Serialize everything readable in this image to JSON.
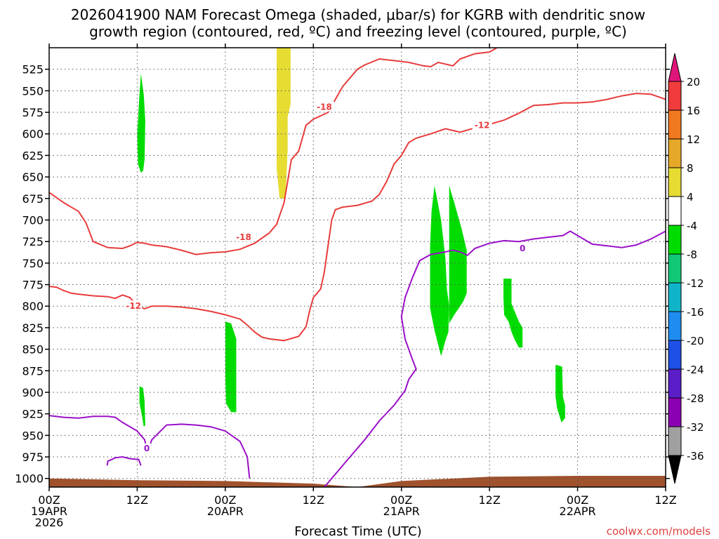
{
  "chart_data": {
    "type": "contour",
    "title_line1": "2026041900 NAM Forecast Omega (shaded, μbar/s) for KGRB with dendritic snow",
    "title_line2": "growth region (contoured, red, ºC) and freezing level (contoured, purple, ºC)",
    "xlabel": "Forecast Time (UTC)",
    "credit": "coolwx.com/models",
    "x_range_hours": [
      0,
      84
    ],
    "x_ticks": [
      {
        "h": 0,
        "l1": "00Z",
        "l2": "19APR",
        "l3": "2026"
      },
      {
        "h": 12,
        "l1": "12Z",
        "l2": "",
        "l3": ""
      },
      {
        "h": 24,
        "l1": "00Z",
        "l2": "20APR",
        "l3": ""
      },
      {
        "h": 36,
        "l1": "12Z",
        "l2": "",
        "l3": ""
      },
      {
        "h": 48,
        "l1": "00Z",
        "l2": "21APR",
        "l3": ""
      },
      {
        "h": 60,
        "l1": "12Z",
        "l2": "",
        "l3": ""
      },
      {
        "h": 72,
        "l1": "00Z",
        "l2": "22APR",
        "l3": ""
      },
      {
        "h": 84,
        "l1": "12Z",
        "l2": "",
        "l3": ""
      }
    ],
    "y_range_mb": [
      1010,
      500
    ],
    "y_ticks": [
      "525",
      "550",
      "575",
      "600",
      "625",
      "650",
      "675",
      "700",
      "725",
      "750",
      "775",
      "800",
      "825",
      "850",
      "875",
      "900",
      "925",
      "950",
      "975",
      "1000"
    ],
    "colorbar": {
      "labels": [
        "20",
        "16",
        "12",
        "8",
        "4",
        "-4",
        "-8",
        "-12",
        "-16",
        "-20",
        "-24",
        "-28",
        "-32",
        "-36"
      ],
      "colors": [
        "#f03c3c",
        "#f07820",
        "#e6a828",
        "#e6dc32",
        "#ffffff",
        "#00dc00",
        "#10c878",
        "#10b4c8",
        "#1e8cf0",
        "#1e50e6",
        "#5a1ec8",
        "#8c00b4",
        "#a0a0a0"
      ],
      "top_color": "#e0157a",
      "bottom_color": "#000000"
    },
    "omega_regions": [
      {
        "level": "4",
        "color": "#e6dc32",
        "points": [
          [
            31,
            500
          ],
          [
            32.9,
            500
          ],
          [
            32.9,
            565
          ],
          [
            32.5,
            580
          ],
          [
            32.5,
            618
          ],
          [
            32.2,
            675
          ],
          [
            31.4,
            675
          ],
          [
            31,
            640
          ]
        ]
      },
      {
        "level": "-4",
        "color": "#00dc00",
        "points": [
          [
            12.5,
            530
          ],
          [
            12.9,
            555
          ],
          [
            13.1,
            585
          ],
          [
            13,
            630
          ],
          [
            12.8,
            643
          ],
          [
            12.5,
            645
          ],
          [
            12.1,
            635
          ],
          [
            12,
            600
          ],
          [
            12.3,
            555
          ]
        ]
      },
      {
        "level": "-4",
        "color": "#00dc00",
        "points": [
          [
            12.3,
            893
          ],
          [
            12.8,
            895
          ],
          [
            13,
            910
          ],
          [
            13.1,
            938
          ],
          [
            12.9,
            940
          ],
          [
            12.6,
            925
          ],
          [
            12.3,
            912
          ]
        ]
      },
      {
        "level": "-4",
        "color": "#00dc00",
        "points": [
          [
            24,
            818
          ],
          [
            24.8,
            820
          ],
          [
            25.5,
            838
          ],
          [
            25.5,
            923
          ],
          [
            24.8,
            923
          ],
          [
            24.1,
            913
          ],
          [
            24,
            880
          ]
        ]
      },
      {
        "level": "-4",
        "color": "#00dc00",
        "points": [
          [
            52.5,
            660
          ],
          [
            53.4,
            700
          ],
          [
            54,
            745
          ],
          [
            54.2,
            780
          ],
          [
            54.5,
            800
          ],
          [
            54.4,
            830
          ],
          [
            54,
            840
          ],
          [
            53.4,
            858
          ],
          [
            52.5,
            828
          ],
          [
            51.9,
            802
          ],
          [
            51.9,
            730
          ],
          [
            52.1,
            690
          ]
        ]
      },
      {
        "level": "-4",
        "color": "#00dc00",
        "points": [
          [
            54.5,
            660
          ],
          [
            55.2,
            680
          ],
          [
            56.2,
            710
          ],
          [
            56.9,
            735
          ],
          [
            56.9,
            785
          ],
          [
            56.4,
            795
          ],
          [
            55.2,
            810
          ],
          [
            54.5,
            820
          ]
        ]
      },
      {
        "level": "-4",
        "color": "#00dc00",
        "points": [
          [
            61.9,
            768
          ],
          [
            63,
            768
          ],
          [
            63,
            797
          ],
          [
            64,
            818
          ],
          [
            64.5,
            825
          ],
          [
            64.5,
            848
          ],
          [
            64,
            848
          ],
          [
            63.5,
            840
          ],
          [
            63,
            830
          ],
          [
            62.6,
            818
          ],
          [
            62,
            810
          ],
          [
            61.9,
            790
          ]
        ]
      },
      {
        "level": "-4",
        "color": "#00dc00",
        "points": [
          [
            69,
            868
          ],
          [
            69.9,
            870
          ],
          [
            70,
            905
          ],
          [
            70.3,
            915
          ],
          [
            70.3,
            930
          ],
          [
            69.8,
            935
          ],
          [
            69.2,
            918
          ],
          [
            69,
            905
          ]
        ]
      }
    ],
    "terrain": {
      "color": "#a0522d",
      "points": [
        [
          0,
          1000
        ],
        [
          12,
          1002
        ],
        [
          24,
          1003
        ],
        [
          36,
          1006
        ],
        [
          42,
          1010
        ],
        [
          48,
          1003
        ],
        [
          60,
          998
        ],
        [
          72,
          997
        ],
        [
          84,
          997
        ]
      ]
    },
    "contours": [
      {
        "value": "-18",
        "label": "-18",
        "color": "#e83c3c",
        "label_at": [
          26.5,
          720
        ],
        "points": [
          [
            0,
            668
          ],
          [
            2,
            680
          ],
          [
            4,
            690
          ],
          [
            5,
            703
          ],
          [
            6,
            725
          ],
          [
            8,
            732
          ],
          [
            10,
            733
          ],
          [
            11,
            730
          ],
          [
            12,
            726
          ],
          [
            13,
            727
          ],
          [
            14,
            729
          ],
          [
            16,
            731
          ],
          [
            18,
            735
          ],
          [
            20,
            740
          ],
          [
            22,
            738
          ],
          [
            24,
            737
          ],
          [
            26,
            734
          ],
          [
            28,
            727
          ],
          [
            30,
            715
          ],
          [
            31,
            705
          ],
          [
            32,
            680
          ],
          [
            33,
            630
          ],
          [
            34,
            620
          ],
          [
            35,
            590
          ],
          [
            36,
            583
          ],
          [
            38,
            575
          ],
          [
            39,
            560
          ],
          [
            40,
            545
          ],
          [
            41,
            535
          ],
          [
            42,
            525
          ],
          [
            43,
            520
          ],
          [
            45,
            513
          ],
          [
            47,
            515
          ],
          [
            49,
            517
          ],
          [
            51,
            521
          ],
          [
            52,
            522
          ],
          [
            53,
            517
          ],
          [
            54,
            519
          ],
          [
            55,
            521
          ],
          [
            56,
            513
          ],
          [
            58,
            507
          ],
          [
            60,
            505
          ],
          [
            61,
            500
          ],
          [
            62,
            497
          ]
        ]
      },
      {
        "value": "-12",
        "label": "-12",
        "color": "#e83c3c",
        "label_at": [
          11.5,
          800
        ],
        "points": [
          [
            0,
            777
          ],
          [
            1,
            778
          ],
          [
            2,
            782
          ],
          [
            3,
            785
          ],
          [
            4,
            786
          ],
          [
            6,
            788
          ],
          [
            8,
            789
          ],
          [
            9,
            791
          ],
          [
            10,
            787
          ],
          [
            11,
            790
          ],
          [
            12,
            799
          ],
          [
            13,
            803
          ],
          [
            14,
            800
          ],
          [
            16,
            800
          ],
          [
            18,
            801
          ],
          [
            20,
            803
          ],
          [
            22,
            806
          ],
          [
            24,
            810
          ],
          [
            26,
            815
          ],
          [
            27,
            822
          ],
          [
            28,
            830
          ],
          [
            29,
            836
          ],
          [
            30,
            838
          ],
          [
            32,
            840
          ],
          [
            34,
            835
          ],
          [
            35,
            824
          ],
          [
            35.5,
            805
          ],
          [
            36,
            790
          ],
          [
            37,
            780
          ],
          [
            37.5,
            760
          ],
          [
            38,
            730
          ],
          [
            38.5,
            700
          ],
          [
            39,
            688
          ],
          [
            40,
            685
          ],
          [
            42,
            683
          ],
          [
            44,
            678
          ],
          [
            45,
            670
          ],
          [
            46,
            655
          ],
          [
            47,
            635
          ],
          [
            48,
            625
          ],
          [
            49,
            610
          ],
          [
            50,
            605
          ],
          [
            52,
            600
          ],
          [
            54,
            594
          ],
          [
            56,
            598
          ],
          [
            58,
            593
          ],
          [
            60,
            589
          ],
          [
            62,
            584
          ],
          [
            63,
            580
          ],
          [
            64,
            576
          ],
          [
            66,
            567
          ],
          [
            68,
            566
          ],
          [
            70,
            564
          ],
          [
            72,
            564
          ],
          [
            74,
            563
          ],
          [
            76,
            560
          ],
          [
            78,
            556
          ],
          [
            80,
            553
          ],
          [
            82,
            554
          ],
          [
            84,
            560
          ]
        ]
      },
      {
        "value": "0",
        "label": "0",
        "color": "#9a10c8",
        "label_at": [
          64.5,
          733
        ],
        "points": [
          [
            0,
            927
          ],
          [
            2,
            929
          ],
          [
            4,
            930
          ],
          [
            6,
            928
          ],
          [
            8,
            928
          ],
          [
            9,
            929
          ],
          [
            10,
            935
          ],
          [
            12,
            945
          ],
          [
            13,
            955
          ],
          [
            13.4,
            968
          ]
        ],
        "extra": [
          [
            13.4,
            968
          ],
          [
            14,
            955
          ],
          [
            16,
            938
          ],
          [
            18,
            937
          ],
          [
            20,
            938
          ],
          [
            22,
            940
          ],
          [
            24,
            945
          ],
          [
            26,
            957
          ],
          [
            27,
            975
          ],
          [
            27.3,
            1000
          ]
        ]
      },
      {
        "value": "0b",
        "label": "",
        "color": "#9a10c8",
        "label_at": null,
        "points": [
          [
            7.9,
            985
          ],
          [
            8,
            980
          ],
          [
            9,
            976
          ],
          [
            10,
            975
          ],
          [
            11,
            977
          ],
          [
            12.2,
            978
          ],
          [
            12.5,
            985
          ]
        ]
      },
      {
        "value": "0c",
        "label": "0",
        "color": "#9a10c8",
        "label_at": null,
        "points": [
          [
            37.5,
            1010
          ],
          [
            38,
            1005
          ],
          [
            39,
            995
          ],
          [
            41,
            975
          ],
          [
            43,
            955
          ],
          [
            45,
            933
          ],
          [
            47,
            915
          ],
          [
            48.5,
            898
          ],
          [
            49,
            885
          ],
          [
            50,
            873
          ],
          [
            49.5,
            862
          ],
          [
            48.5,
            838
          ],
          [
            48,
            812
          ],
          [
            48.5,
            790
          ],
          [
            49.5,
            767
          ],
          [
            50.5,
            747
          ],
          [
            52,
            740
          ],
          [
            54,
            737
          ],
          [
            55,
            735
          ],
          [
            56,
            737
          ],
          [
            57,
            741
          ],
          [
            58,
            733
          ],
          [
            60,
            727
          ],
          [
            62,
            724
          ],
          [
            64,
            725
          ],
          [
            66,
            722
          ],
          [
            68,
            720
          ],
          [
            70,
            718
          ],
          [
            71,
            713
          ],
          [
            72,
            718
          ],
          [
            73,
            723
          ],
          [
            74,
            728
          ],
          [
            76,
            730
          ],
          [
            78,
            732
          ],
          [
            80,
            729
          ],
          [
            82,
            722
          ],
          [
            84,
            713
          ]
        ]
      }
    ]
  }
}
